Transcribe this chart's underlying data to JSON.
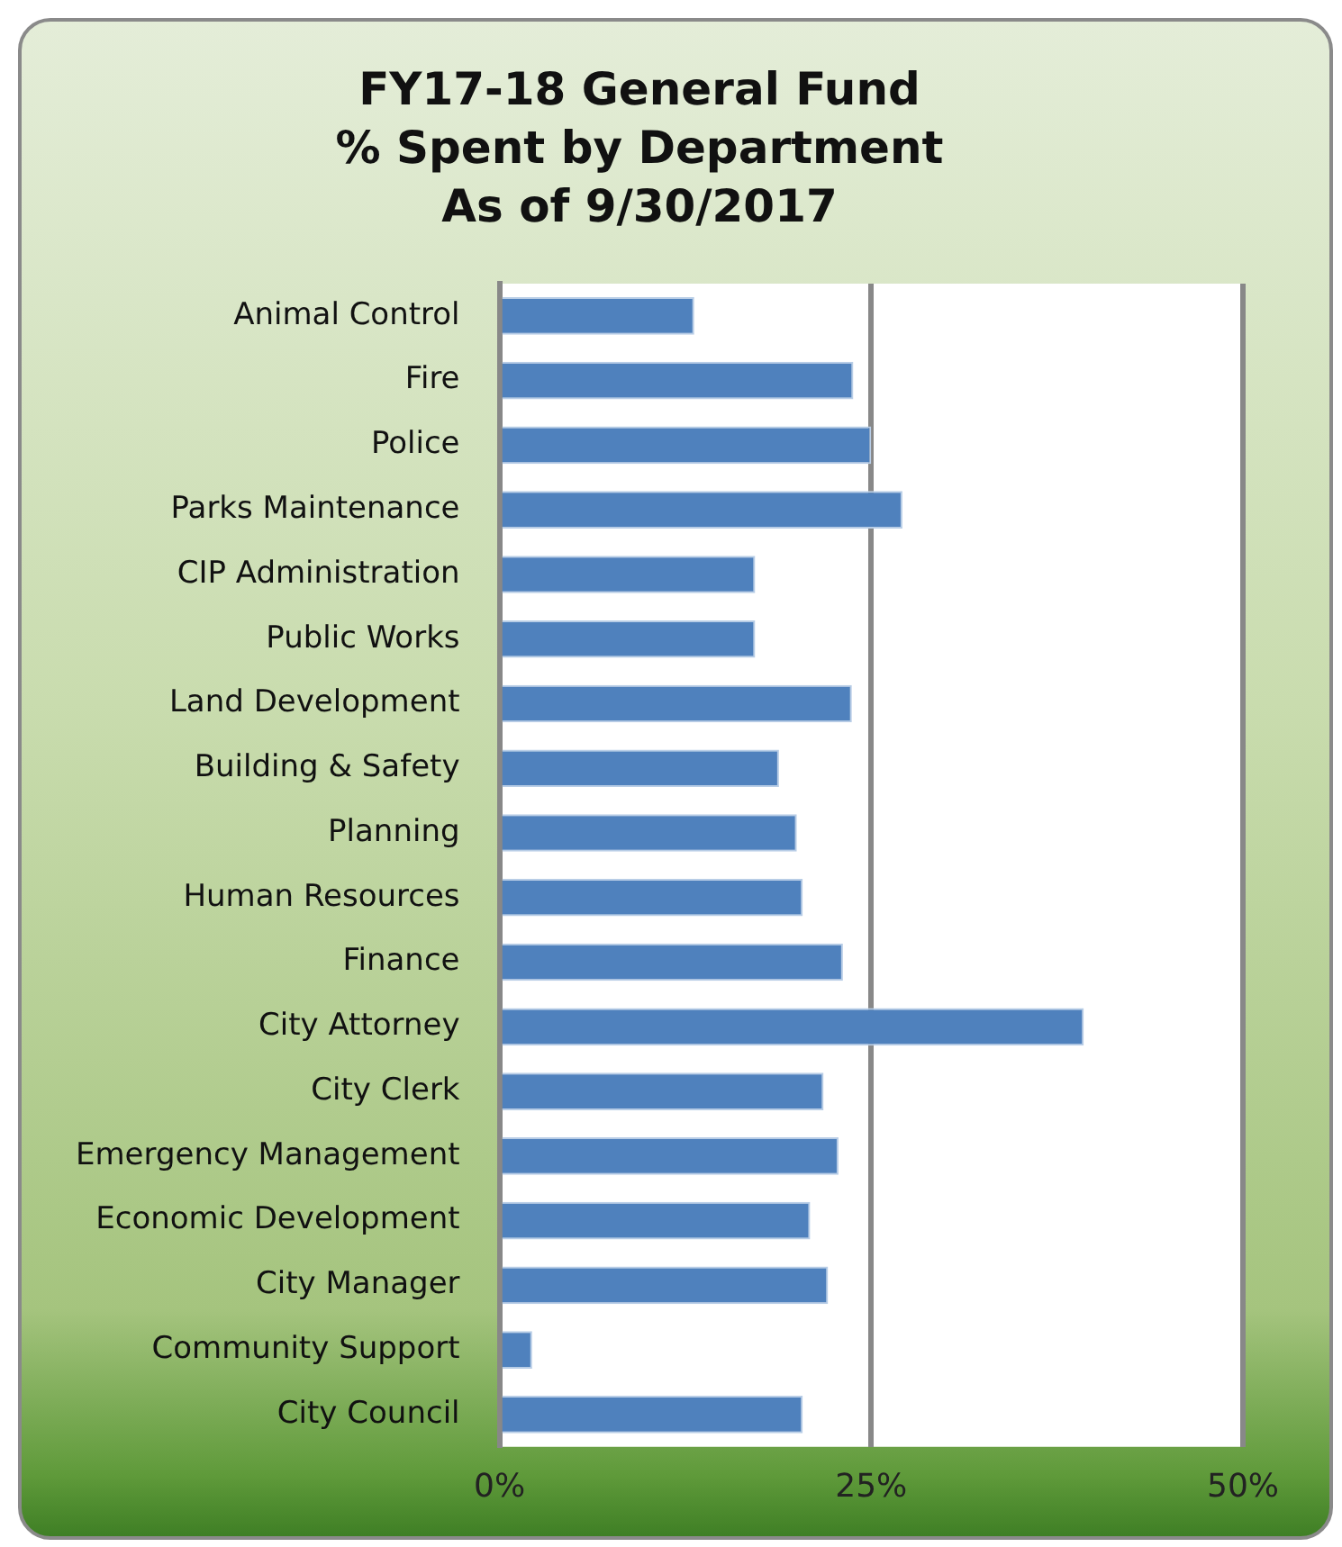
{
  "chart_data": {
    "type": "bar",
    "orientation": "horizontal",
    "title": "FY17-18 General Fund\n% Spent by Department\nAs of 9/30/2017",
    "categories": [
      "Animal Control",
      "Fire",
      "Police",
      "Parks Maintenance",
      "CIP Administration",
      "Public Works",
      "Land Development",
      "Building & Safety",
      "Planning",
      "Human Resources",
      "Finance",
      "City Attorney",
      "City Clerk",
      "Emergency Management",
      "Economic Development",
      "City Manager",
      "Community Support",
      "City Council"
    ],
    "values": [
      13.1,
      23.8,
      25.0,
      27.1,
      17.2,
      17.2,
      23.7,
      18.8,
      20.0,
      20.4,
      23.1,
      39.3,
      21.8,
      22.8,
      20.9,
      22.1,
      2.2,
      20.4
    ],
    "color": "#4f81bd",
    "xlim": [
      0,
      50
    ],
    "xticks": [
      {
        "value": 0,
        "label": "0%"
      },
      {
        "value": 25,
        "label": "25%"
      },
      {
        "value": 50,
        "label": "50%"
      }
    ],
    "grid": "x",
    "legend": false
  }
}
